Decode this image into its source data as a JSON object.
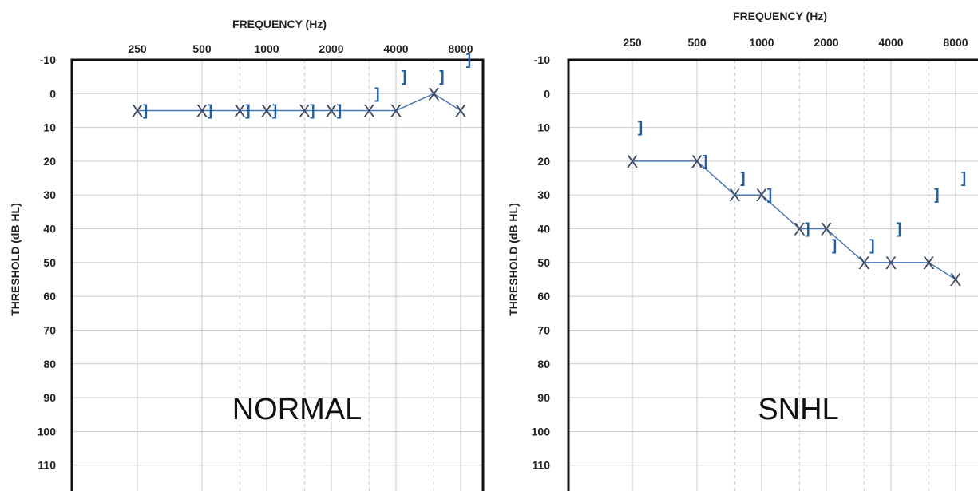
{
  "chart_data": [
    {
      "type": "line",
      "title": "NORMAL",
      "xlabel": "FREQUENCY (Hz)",
      "ylabel": "THRESHOLD (dB HL)",
      "x_tick_labels": [
        "250",
        "500",
        "1000",
        "2000",
        "4000",
        "8000"
      ],
      "x_tick_values": [
        250,
        500,
        1000,
        2000,
        4000,
        8000
      ],
      "x_scale": "log2",
      "ylim": [
        -10,
        120
      ],
      "y_inverted": true,
      "y_tick_labels": [
        "-10",
        "0",
        "10",
        "20",
        "30",
        "40",
        "50",
        "60",
        "70",
        "80",
        "90",
        "100",
        "110"
      ],
      "y_tick_values": [
        -10,
        0,
        10,
        20,
        30,
        40,
        50,
        60,
        70,
        80,
        90,
        100,
        110
      ],
      "grid": true,
      "series": [
        {
          "marker": "X",
          "color": "#3b4a63",
          "line_color": "#4a78b5",
          "points": [
            [
              250,
              5
            ],
            [
              500,
              5
            ],
            [
              750,
              5
            ],
            [
              1000,
              5
            ],
            [
              1500,
              5
            ],
            [
              2000,
              5
            ],
            [
              3000,
              5
            ],
            [
              4000,
              5
            ],
            [
              6000,
              0
            ],
            [
              8000,
              5
            ]
          ]
        },
        {
          "marker": "]",
          "color": "#1f5fa8",
          "points": [
            [
              250,
              5
            ],
            [
              500,
              5
            ],
            [
              750,
              5
            ],
            [
              1000,
              5
            ],
            [
              1500,
              5
            ],
            [
              2000,
              5
            ],
            [
              3000,
              0
            ],
            [
              4000,
              -5
            ],
            [
              6000,
              -5
            ],
            [
              8000,
              -10
            ]
          ]
        }
      ]
    },
    {
      "type": "line",
      "title": "SNHL",
      "xlabel": "FREQUENCY (Hz)",
      "ylabel": "THRESHOLD (dB HL)",
      "x_tick_labels": [
        "250",
        "500",
        "1000",
        "2000",
        "4000",
        "8000"
      ],
      "x_tick_values": [
        250,
        500,
        1000,
        2000,
        4000,
        8000
      ],
      "x_scale": "log2",
      "ylim": [
        -10,
        120
      ],
      "y_inverted": true,
      "y_tick_labels": [
        "-10",
        "0",
        "10",
        "20",
        "30",
        "40",
        "50",
        "60",
        "70",
        "80",
        "90",
        "100",
        "110"
      ],
      "y_tick_values": [
        -10,
        0,
        10,
        20,
        30,
        40,
        50,
        60,
        70,
        80,
        90,
        100,
        110
      ],
      "grid": true,
      "series": [
        {
          "marker": "X",
          "color": "#3b4a63",
          "line_color": "#4a78b5",
          "points": [
            [
              250,
              20
            ],
            [
              500,
              20
            ],
            [
              750,
              30
            ],
            [
              1000,
              30
            ],
            [
              1500,
              40
            ],
            [
              2000,
              40
            ],
            [
              3000,
              50
            ],
            [
              4000,
              50
            ],
            [
              6000,
              50
            ],
            [
              8000,
              55
            ]
          ]
        },
        {
          "marker": "]",
          "color": "#1f5fa8",
          "points": [
            [
              250,
              10
            ],
            [
              500,
              20
            ],
            [
              750,
              25
            ],
            [
              1000,
              30
            ],
            [
              1500,
              40
            ],
            [
              2000,
              45
            ],
            [
              3000,
              45
            ],
            [
              4000,
              40
            ],
            [
              6000,
              30
            ],
            [
              8000,
              25
            ]
          ]
        }
      ]
    }
  ]
}
